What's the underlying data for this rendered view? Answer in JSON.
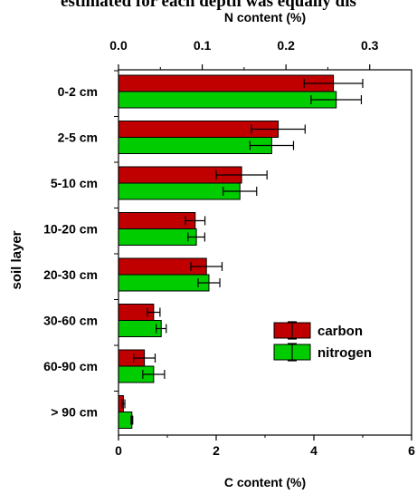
{
  "caption": "estimated for each depth was equally dis",
  "chart_data": {
    "type": "bar",
    "orientation": "horizontal",
    "categories": [
      "0-2 cm",
      "2-5 cm",
      "5-10 cm",
      "10-20 cm",
      "20-30 cm",
      "30-60 cm",
      "60-90 cm",
      "> 90 cm"
    ],
    "series": [
      {
        "name": "carbon",
        "axis": "C content (%)",
        "color": "#c00000",
        "values": [
          4.4,
          3.27,
          2.52,
          1.57,
          1.8,
          0.72,
          0.53,
          0.1
        ],
        "errors": [
          0.6,
          0.55,
          0.52,
          0.2,
          0.32,
          0.13,
          0.22,
          0.03
        ]
      },
      {
        "name": "nitrogen",
        "axis": "N content (%)",
        "color": "#00cc00",
        "values": [
          0.26,
          0.183,
          0.145,
          0.093,
          0.108,
          0.051,
          0.042,
          0.016
        ],
        "errors": [
          0.03,
          0.026,
          0.02,
          0.01,
          0.013,
          0.006,
          0.013,
          0.001
        ]
      }
    ],
    "xlabel_bottom": "C content (%)",
    "xlim_bottom": [
      0,
      6
    ],
    "xticks_bottom": [
      "0",
      "2",
      "4",
      "6"
    ],
    "xlabel_top": "N content (%)",
    "xlim_top": [
      0,
      0.35
    ],
    "xticks_top": [
      "0.0",
      "0.1",
      "0.2",
      "0.3"
    ],
    "ylabel": "soil layer",
    "grid": false,
    "legend_position": "center-right"
  }
}
